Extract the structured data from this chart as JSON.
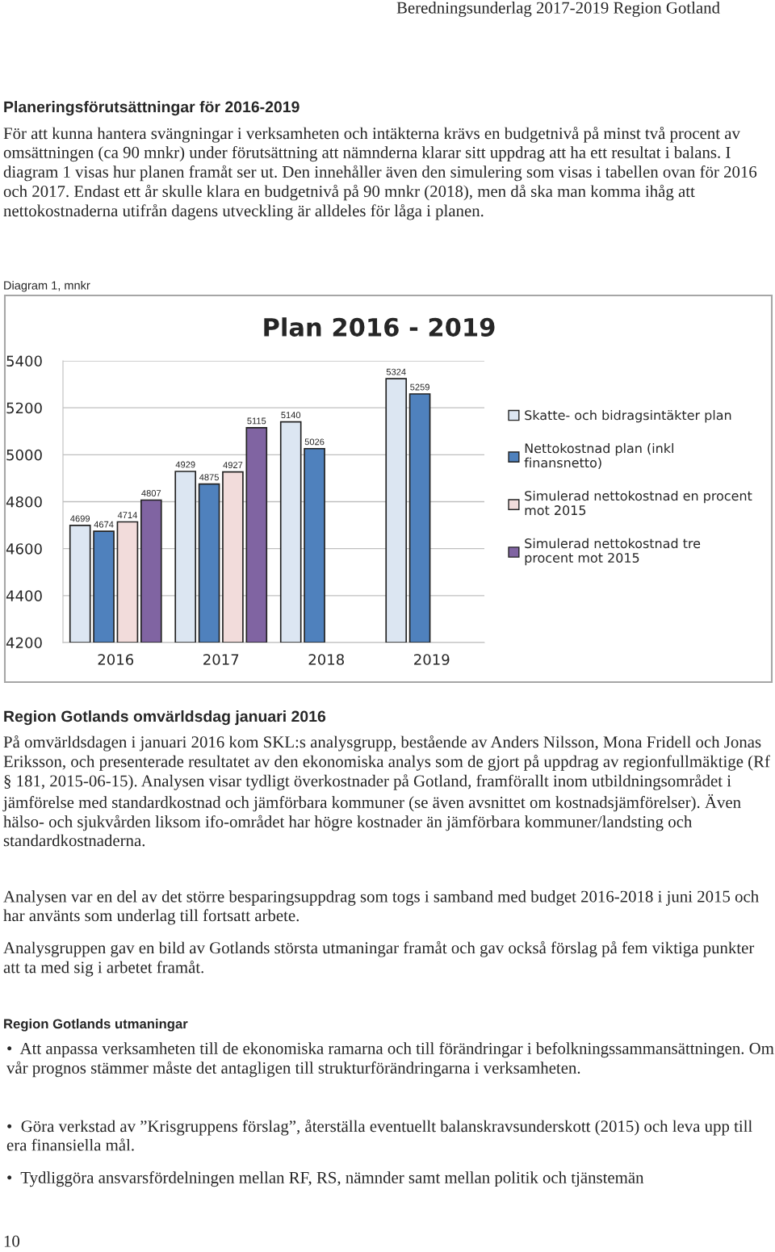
{
  "chart_data": {
    "type": "bar",
    "title": "Plan 2016 - 2019",
    "categories": [
      "2016",
      "2017",
      "2018",
      "2019"
    ],
    "series": [
      {
        "name": "Skatte- och bidragsintäkter plan",
        "color": "#dce6f2",
        "values": [
          4699,
          4929,
          5140,
          5324
        ]
      },
      {
        "name": "Nettokostnad plan (inkl finansnetto)",
        "color": "#4f81bd",
        "values": [
          4674,
          4875,
          5026,
          5259
        ]
      },
      {
        "name": "Simulerad nettokostnad en procent mot 2015",
        "color": "#f2dcdb",
        "values": [
          4714,
          4927,
          null,
          null
        ]
      },
      {
        "name": "Simulerad nettokostnad tre procent mot 2015",
        "color": "#8064a2",
        "values": [
          4807,
          5115,
          null,
          null
        ]
      }
    ],
    "ylim": [
      4200,
      5400
    ],
    "yticks": [
      4200,
      4400,
      4600,
      4800,
      5000,
      5200,
      5400
    ],
    "grid": "y",
    "legend": "right",
    "data_labels": true,
    "annotations": [
      "Beredningsunderlag 2017-2019 Region Gotland",
      "Planeringsförutsättningar för 2016-2019",
      "För att kunna hantera svängningar i verksamheten och intäkterna krävs en budgetnivå på minst två procent av omsättningen (ca 90 mnkr) under förutsättning att nämnderna klarar sitt uppdrag att ha ett resultat i balans. I diagram 1 visas hur planen framåt ser ut. Den innehåller även den simulering som visas i tabellen ovan för 2016 och 2017. Endast ett år skulle klara en budgetnivå på 90 mnkr (2018), men då ska man komma ihåg att nettokostnaderna utifrån dagens utveckling är alldeles för låga i planen.",
      "Diagram 1, mnkr",
      "Region Gotlands omvärldsdag januari 2016",
      "På omvärldsdagen i januari 2016 kom SKL:s analysgrupp, bestående av Anders Nilsson, Mona Fridell och Jonas Eriksson, och presenterade resultatet av den ekonomiska analys som de gjort på uppdrag av regionfullmäktige (Rf § 181, 2015-06-15). Analysen visar tydligt överkostnader på Gotland, framförallt inom utbildningsområdet i jämförelse med standardkostnad och jämförbara kommuner (se även avsnittet om kostnadsjämförelser). Även hälso- och sjukvården liksom ifo-området har högre kostnader än jämförbara kommuner/landsting och standardkostnaderna.",
      "Analysen var en del av det större besparingsuppdrag som togs i samband med budget 2016-2018 i juni 2015 och har använts som underlag till fortsatt arbete.",
      "Analysgruppen gav en bild av Gotlands största utmaningar framåt och gav också förslag på fem viktiga punkter att ta med sig i arbetet framåt.",
      "Region Gotlands utmaningar",
      "•  Att anpassa verksamheten till de ekonomiska ramarna och till förändringar i befolkningssammansättningen. Om vår prognos stämmer måste det antagligen till strukturförändringarna i verksamheten.",
      "•  Göra verkstad av ”Krisgruppens förslag”, återställa eventuellt balanskravsunderskott (2015) och leva upp till era finansiella mål.",
      "•  Tydliggöra ansvarsfördelningen mellan RF, RS, nämnder samt mellan politik och tjänstemän",
      "10"
    ]
  }
}
